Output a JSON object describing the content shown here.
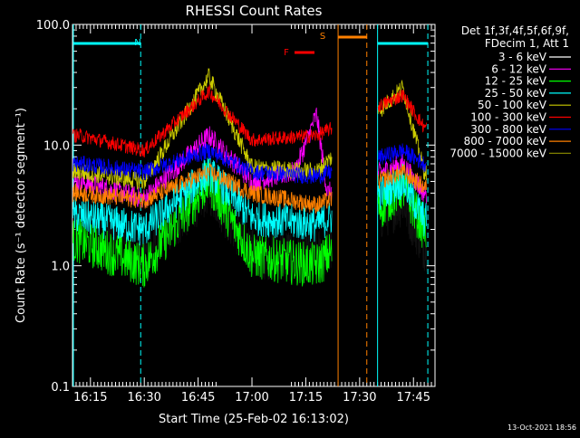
{
  "chart_data": {
    "type": "line",
    "title": "RHESSI Count Rates",
    "xlabel": "Start Time (25-Feb-02 16:13:02)",
    "ylabel": "Count Rate (s⁻¹ detector segment⁻¹)",
    "yscale": "log",
    "ylim": [
      0.1,
      100.0
    ],
    "xlim": [
      "16:10",
      "17:51"
    ],
    "x_ticks": [
      "16:15",
      "16:30",
      "16:45",
      "17:00",
      "17:15",
      "17:30",
      "17:45"
    ],
    "y_ticks": [
      "0.1",
      "1.0",
      "10.0",
      "100.0"
    ],
    "legend_header": [
      "Det 1f,3f,4f,5f,6f,9f,",
      "FDecim 1, Att 1"
    ],
    "legend_placement": "right",
    "series": [
      {
        "name": "3 - 6 keV",
        "color": "#000000",
        "values": [
          [
            16.2,
            2.5
          ],
          [
            16.5,
            1.2
          ],
          [
            16.8,
            4.5
          ],
          [
            17.0,
            1.3
          ],
          [
            17.3,
            1.2
          ],
          [
            17.7,
            3.5
          ],
          [
            17.8,
            1.5
          ]
        ]
      },
      {
        "name": "6 - 12 keV",
        "color": "#ff00ff",
        "values": [
          [
            16.2,
            5.0
          ],
          [
            16.5,
            3.6
          ],
          [
            16.8,
            12.0
          ],
          [
            17.0,
            5.0
          ],
          [
            17.2,
            6.0
          ],
          [
            17.3,
            18.0
          ],
          [
            17.35,
            4.0
          ],
          [
            17.7,
            7.0
          ],
          [
            17.8,
            4.0
          ]
        ]
      },
      {
        "name": "12 - 25 keV",
        "color": "#00ff00",
        "values": [
          [
            16.2,
            1.6
          ],
          [
            16.5,
            1.0
          ],
          [
            16.8,
            5.0
          ],
          [
            17.0,
            1.2
          ],
          [
            17.3,
            1.0
          ],
          [
            17.7,
            4.5
          ],
          [
            17.8,
            2.0
          ]
        ]
      },
      {
        "name": "25 - 50 keV",
        "color": "#00ffff",
        "values": [
          [
            16.2,
            2.6
          ],
          [
            16.5,
            2.0
          ],
          [
            16.8,
            6.0
          ],
          [
            17.0,
            2.5
          ],
          [
            17.3,
            2.2
          ],
          [
            17.7,
            5.0
          ],
          [
            17.8,
            2.4
          ]
        ]
      },
      {
        "name": "50 - 100 keV",
        "color": "#cccc00",
        "values": [
          [
            16.2,
            6.0
          ],
          [
            16.5,
            5.0
          ],
          [
            16.8,
            37.0
          ],
          [
            17.0,
            6.5
          ],
          [
            17.3,
            6.0
          ],
          [
            17.7,
            30.0
          ],
          [
            17.8,
            6.0
          ]
        ]
      },
      {
        "name": "100 - 300 keV",
        "color": "#ff0000",
        "values": [
          [
            16.2,
            12.0
          ],
          [
            16.5,
            9.0
          ],
          [
            16.8,
            28.0
          ],
          [
            17.0,
            11.0
          ],
          [
            17.3,
            12.0
          ],
          [
            17.7,
            26.0
          ],
          [
            17.8,
            14.0
          ]
        ]
      },
      {
        "name": "300 - 800 keV",
        "color": "#0000ff",
        "values": [
          [
            16.2,
            7.0
          ],
          [
            16.5,
            6.0
          ],
          [
            16.8,
            9.0
          ],
          [
            17.0,
            6.0
          ],
          [
            17.3,
            5.5
          ],
          [
            17.7,
            9.0
          ],
          [
            17.8,
            7.0
          ]
        ]
      },
      {
        "name": "800 - 7000 keV",
        "color": "#ff8000",
        "values": [
          [
            16.2,
            4.0
          ],
          [
            16.5,
            3.5
          ],
          [
            16.8,
            6.0
          ],
          [
            17.0,
            4.0
          ],
          [
            17.3,
            3.2
          ],
          [
            17.7,
            6.0
          ],
          [
            17.8,
            4.5
          ]
        ]
      },
      {
        "name": "7000 - 15000 keV",
        "color": "#808000",
        "values": []
      }
    ],
    "annotations": [
      {
        "label": "N",
        "color": "#00ffff"
      },
      {
        "label": "F",
        "color": "#ff0000"
      },
      {
        "label": "S",
        "color": "#ff8000"
      }
    ]
  },
  "footer_timestamp": "13-Oct-2021 18:56"
}
